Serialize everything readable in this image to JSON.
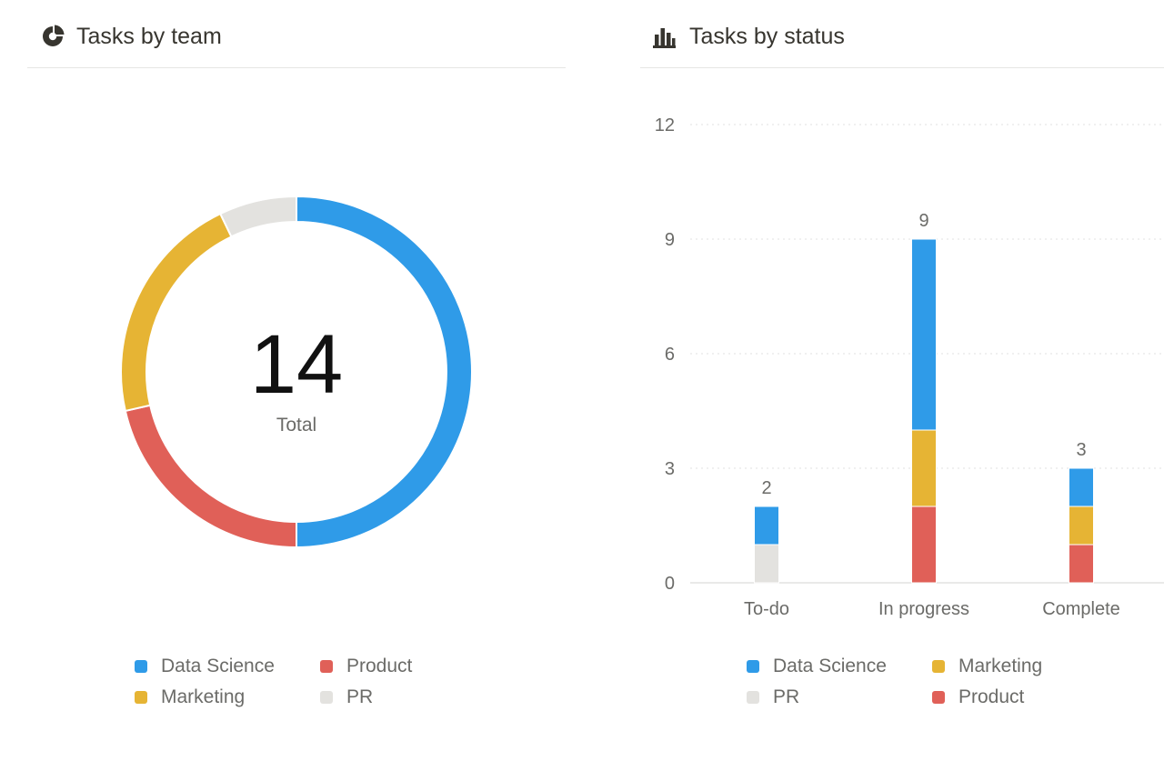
{
  "colors": {
    "data_science": "#2f9be8",
    "product": "#e06058",
    "marketing": "#e6b434",
    "pr": "#e3e2df"
  },
  "team_panel": {
    "icon": "pie-chart-icon",
    "title": "Tasks by team",
    "center_value": "14",
    "center_label": "Total",
    "legend": [
      {
        "label": "Data Science",
        "color": "#2f9be8"
      },
      {
        "label": "Product",
        "color": "#e06058"
      },
      {
        "label": "Marketing",
        "color": "#e6b434"
      },
      {
        "label": "PR",
        "color": "#e3e2df"
      }
    ]
  },
  "status_panel": {
    "icon": "bar-chart-icon",
    "title": "Tasks by status",
    "legend": [
      {
        "label": "Data Science",
        "color": "#2f9be8"
      },
      {
        "label": "Marketing",
        "color": "#e6b434"
      },
      {
        "label": "PR",
        "color": "#e3e2df"
      },
      {
        "label": "Product",
        "color": "#e06058"
      }
    ]
  },
  "chart_data": [
    {
      "type": "pie",
      "title": "Tasks by team",
      "donut": true,
      "total": 14,
      "slices": [
        {
          "name": "Data Science",
          "value": 7,
          "color": "#2f9be8"
        },
        {
          "name": "Product",
          "value": 3,
          "color": "#e06058"
        },
        {
          "name": "Marketing",
          "value": 3,
          "color": "#e6b434"
        },
        {
          "name": "PR",
          "value": 1,
          "color": "#e3e2df"
        }
      ]
    },
    {
      "type": "bar",
      "stacked": true,
      "title": "Tasks by status",
      "categories": [
        "To-do",
        "In progress",
        "Complete"
      ],
      "totals": [
        2,
        9,
        3
      ],
      "series": [
        {
          "name": "Product",
          "color": "#e06058",
          "values": [
            0,
            2,
            1
          ]
        },
        {
          "name": "PR",
          "color": "#e3e2df",
          "values": [
            1,
            0,
            0
          ]
        },
        {
          "name": "Marketing",
          "color": "#e6b434",
          "values": [
            0,
            2,
            1
          ]
        },
        {
          "name": "Data Science",
          "color": "#2f9be8",
          "values": [
            1,
            5,
            1
          ]
        }
      ],
      "yticks": [
        0,
        3,
        6,
        9,
        12
      ],
      "ylim": [
        0,
        12
      ],
      "grid": true,
      "legend_position": "bottom"
    }
  ]
}
